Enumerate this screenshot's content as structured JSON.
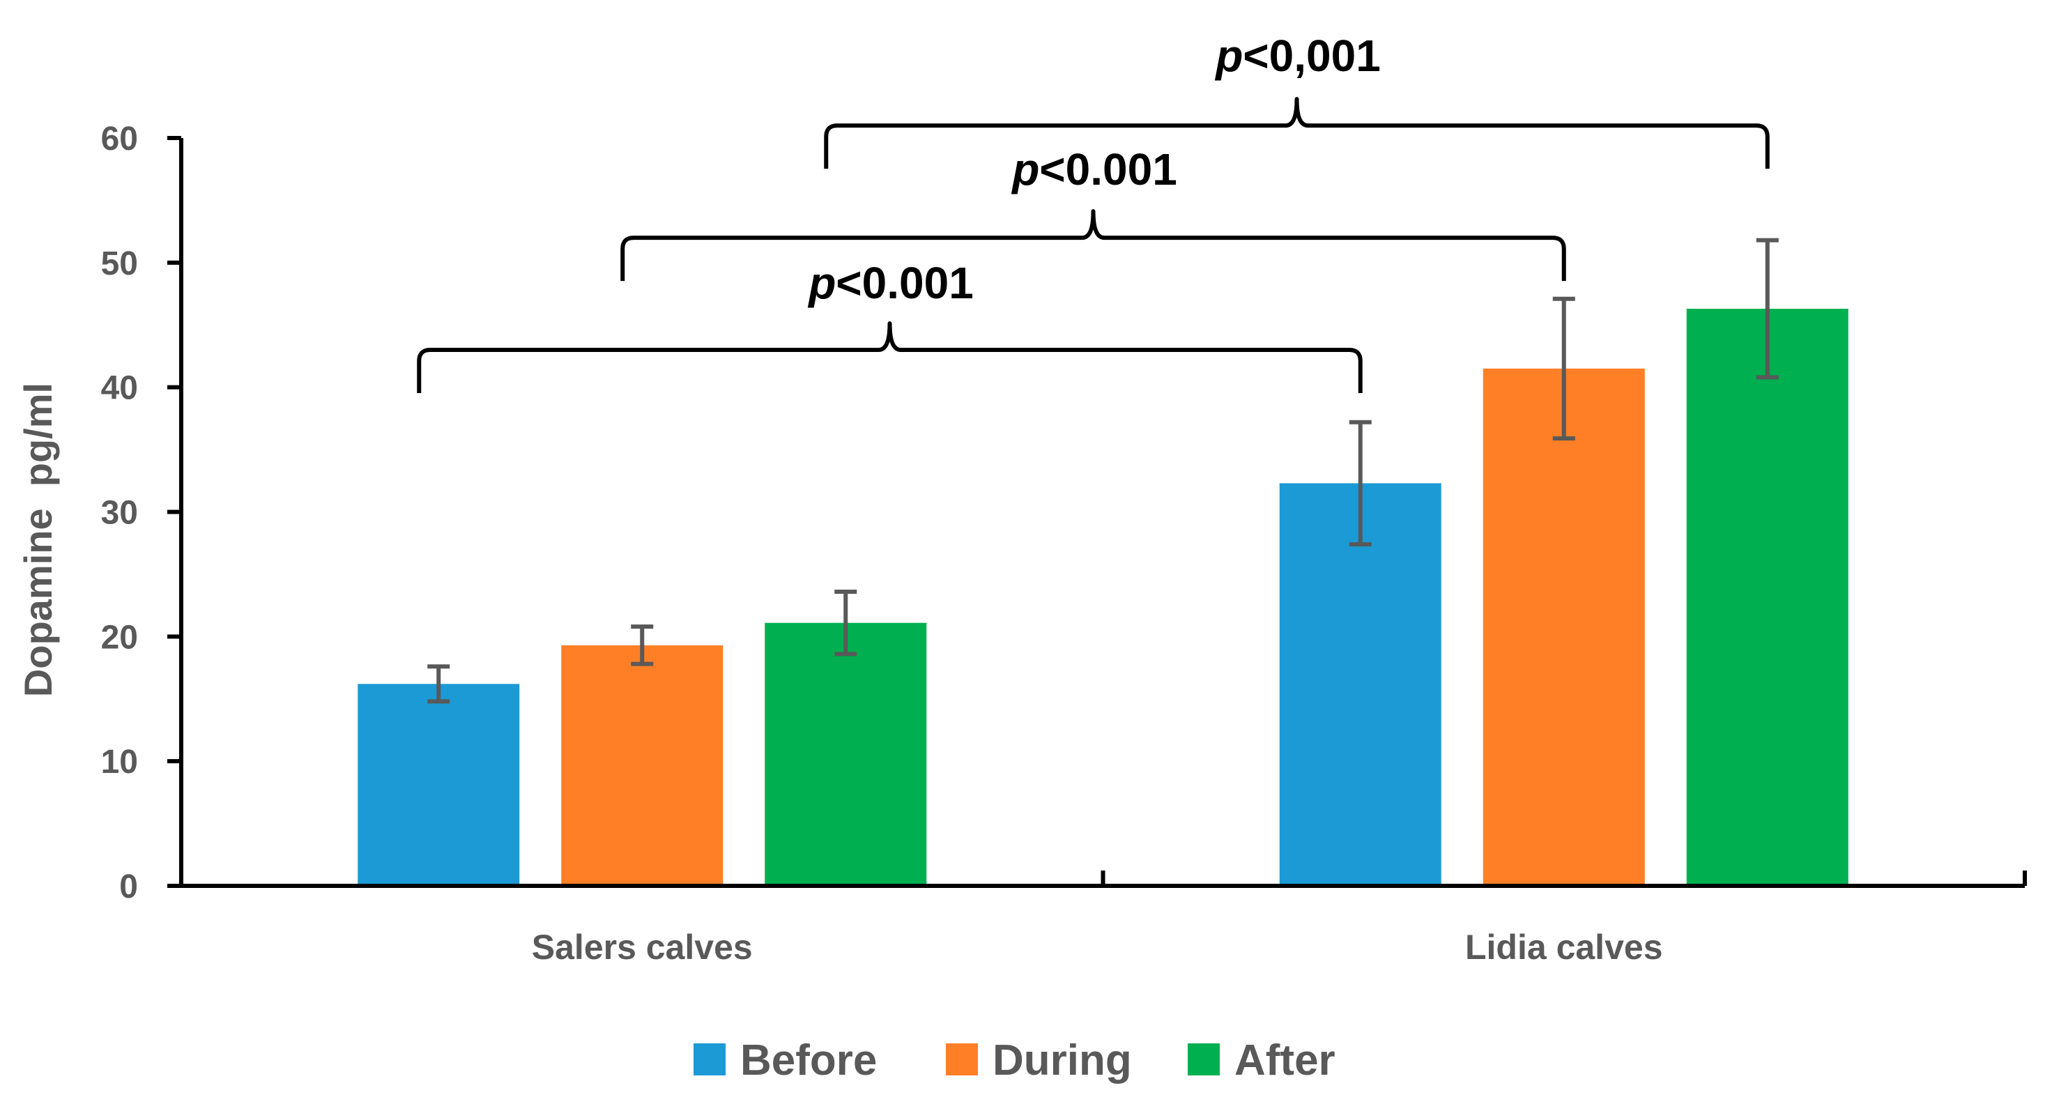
{
  "chart_data": {
    "type": "bar",
    "title": "",
    "xlabel": "",
    "ylabel": "Dopamine  pg/ml",
    "ylim": [
      0,
      60
    ],
    "yticks": [
      0,
      10,
      20,
      30,
      40,
      50,
      60
    ],
    "grid": false,
    "categories": [
      "Salers calves",
      "Lidia calves"
    ],
    "series": [
      {
        "name": "Before",
        "color": "#1B9AD6",
        "values": [
          16.2,
          32.3
        ],
        "errors": [
          1.4,
          4.9
        ]
      },
      {
        "name": "During",
        "color": "#FF7F27",
        "values": [
          19.3,
          41.5
        ],
        "errors": [
          1.5,
          5.6
        ]
      },
      {
        "name": "After",
        "color": "#00B050",
        "values": [
          21.1,
          46.3
        ],
        "errors": [
          2.5,
          5.5
        ]
      }
    ],
    "legend_position": "bottom-center",
    "annotations": [
      {
        "p_symbol": "p",
        "text": "<0.001",
        "from": "Salers calves · Before",
        "to": "Lidia calves · Before",
        "level": 43
      },
      {
        "p_symbol": "p",
        "text": "<0.001",
        "from": "Salers calves · During",
        "to": "Lidia calves · During",
        "level": 52
      },
      {
        "p_symbol": "p",
        "text": "<0,001",
        "from": "Salers calves · After",
        "to": "Lidia calves · After",
        "level": 61
      }
    ]
  }
}
